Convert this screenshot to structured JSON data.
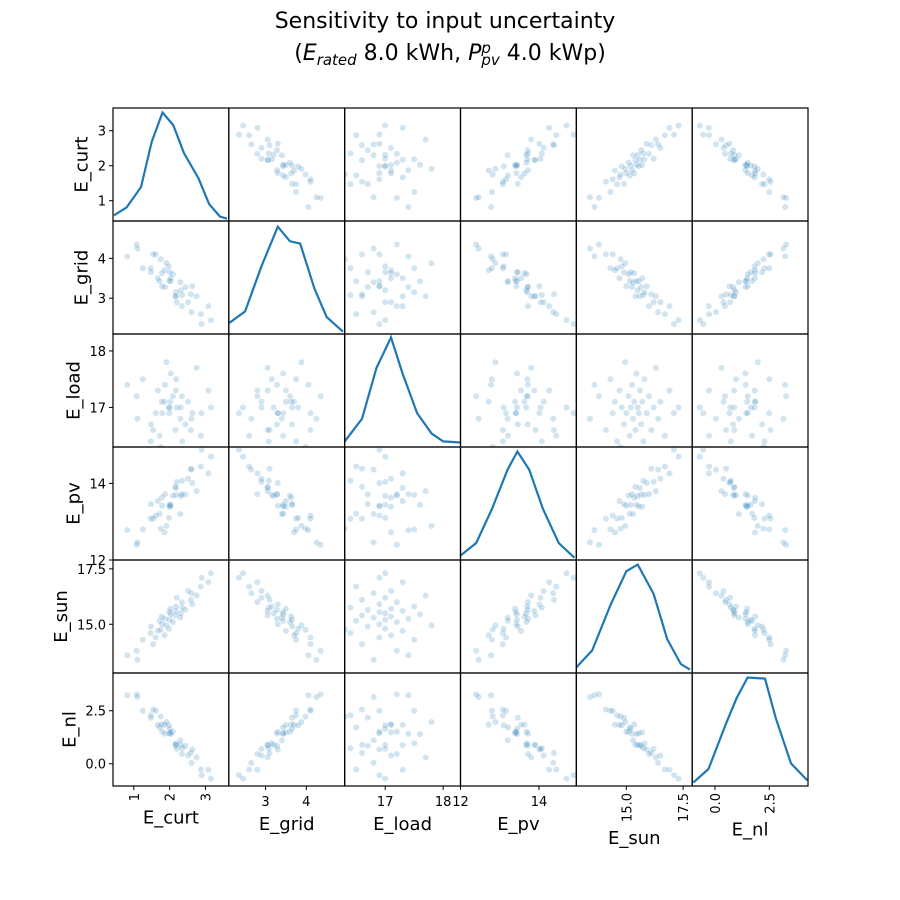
{
  "chart_data": {
    "type": "scatter_matrix",
    "title": "Sensitivity to input uncertainty",
    "subtitle": [
      {
        "text": "(",
        "pos": "base",
        "italic": false
      },
      {
        "text": "E",
        "pos": "base",
        "italic": true
      },
      {
        "text": "rated",
        "pos": "sub",
        "italic": true
      },
      {
        "text": " 8.0 kWh, ",
        "pos": "base",
        "italic": false
      },
      {
        "text": "P",
        "pos": "base",
        "italic": true
      },
      {
        "text": "p",
        "pos": "sup",
        "italic": true
      },
      {
        "text": "pv",
        "pos": "sub",
        "italic": true
      },
      {
        "text": " 4.0 kWp)",
        "pos": "base",
        "italic": false
      }
    ],
    "color": "#1f77b4",
    "point_alpha": 0.2,
    "kde_ylim": [
      0,
      1
    ],
    "variables": [
      {
        "name": "E_curt",
        "lim": [
          0.42,
          3.65
        ],
        "ticks": [
          1,
          2,
          3
        ],
        "xtick_rotation": 90,
        "values": [
          1.1,
          1.08,
          1.54,
          1.25,
          1.61,
          1.86,
          1.47,
          1.67,
          1.98,
          1.48,
          1.91,
          1.79,
          2.09,
          1.72,
          2.0,
          1.87,
          2.3,
          1.78,
          2.16,
          2.03,
          2.31,
          1.99,
          2.17,
          2.44,
          2.02,
          2.35,
          2.18,
          2.63,
          2.34,
          2.59,
          2.2,
          2.75,
          2.61,
          2.51,
          2.87,
          3.08,
          2.89,
          3.15,
          0.82,
          1.75
        ],
        "kde": {
          "x": [
            0.45,
            0.8,
            1.2,
            1.5,
            1.8,
            2.1,
            2.4,
            2.8,
            3.1,
            3.4,
            3.6
          ],
          "y": [
            0.05,
            0.12,
            0.3,
            0.7,
            0.96,
            0.85,
            0.6,
            0.38,
            0.15,
            0.04,
            0.02
          ]
        }
      },
      {
        "name": "E_grid",
        "lim": [
          2.1,
          4.94
        ],
        "ticks": [
          3,
          4
        ],
        "xtick_rotation": 0,
        "values": [
          4.25,
          4.35,
          4.1,
          3.75,
          4.1,
          3.7,
          3.75,
          3.5,
          3.8,
          3.65,
          3.88,
          3.3,
          3.6,
          3.43,
          3.65,
          3.28,
          3.4,
          3.63,
          3.05,
          3.43,
          3.2,
          3.43,
          3.05,
          3.28,
          3.5,
          3.08,
          3.15,
          3.3,
          2.8,
          3.1,
          2.9,
          3.05,
          2.65,
          2.9,
          2.6,
          2.8,
          2.35,
          2.45,
          4.05,
          3.98
        ],
        "kde": {
          "x": [
            2.12,
            2.5,
            2.9,
            3.3,
            3.6,
            3.85,
            4.2,
            4.5,
            4.9
          ],
          "y": [
            0.1,
            0.2,
            0.6,
            0.95,
            0.82,
            0.8,
            0.4,
            0.15,
            0.02
          ]
        }
      },
      {
        "name": "E_load",
        "lim": [
          16.3,
          18.3
        ],
        "ticks": [
          17,
          18
        ],
        "xtick_rotation": 0,
        "values": [
          16.8,
          17.2,
          16.6,
          17.5,
          16.9,
          17.1,
          16.4,
          17.3,
          17.0,
          16.7,
          17.8,
          16.9,
          17.2,
          16.5,
          17.0,
          17.4,
          16.8,
          17.1,
          16.6,
          17.6,
          17.0,
          16.9,
          17.3,
          16.7,
          17.1,
          16.4,
          17.5,
          16.9,
          17.2,
          16.6,
          17.0,
          17.7,
          16.8,
          17.1,
          16.5,
          17.3,
          16.9,
          17.0,
          17.4,
          16.3
        ],
        "kde": {
          "x": [
            16.3,
            16.6,
            16.85,
            17.1,
            17.3,
            17.55,
            17.8,
            18.0,
            18.3
          ],
          "y": [
            0.05,
            0.25,
            0.7,
            0.97,
            0.65,
            0.3,
            0.12,
            0.05,
            0.04
          ]
        }
      },
      {
        "name": "E_pv",
        "lim": [
          12,
          14.95
        ],
        "ticks": [
          12,
          14
        ],
        "xtick_rotation": 0,
        "values": [
          12.46,
          12.4,
          13.08,
          12.8,
          13.16,
          12.72,
          13.08,
          13.54,
          13.1,
          13.46,
          12.89,
          13.42,
          13.68,
          13.21,
          13.44,
          13.72,
          13.2,
          13.63,
          13.91,
          13.44,
          13.67,
          13.4,
          13.88,
          13.71,
          13.39,
          14.07,
          13.7,
          14.01,
          13.72,
          14.38,
          14.04,
          13.8,
          14.36,
          14.12,
          14.44,
          14.26,
          14.88,
          14.7,
          12.78,
          12.82
        ],
        "kde": {
          "x": [
            12.0,
            12.4,
            12.8,
            13.2,
            13.45,
            13.75,
            14.1,
            14.5,
            14.9
          ],
          "y": [
            0.04,
            0.15,
            0.45,
            0.8,
            0.96,
            0.8,
            0.45,
            0.15,
            0.02
          ]
        }
      },
      {
        "name": "E_sun",
        "lim": [
          12.8,
          17.9
        ],
        "ticks": [
          {
            "value": 15,
            "label": "15.0"
          },
          17.5
        ],
        "xtick_rotation": 90,
        "values": [
          13.4,
          13.8,
          14.1,
          14.3,
          14.4,
          14.5,
          14.6,
          14.7,
          14.8,
          14.9,
          14.95,
          15.0,
          15.1,
          15.15,
          15.2,
          15.25,
          15.3,
          15.35,
          15.4,
          15.45,
          15.5,
          15.55,
          15.6,
          15.65,
          15.7,
          15.75,
          15.8,
          15.9,
          16.0,
          16.1,
          16.2,
          16.3,
          16.4,
          16.5,
          16.7,
          16.9,
          17.1,
          17.3,
          13.6,
          14.75
        ],
        "kde": {
          "x": [
            12.8,
            13.5,
            14.3,
            15.0,
            15.5,
            16.2,
            16.8,
            17.4,
            17.8
          ],
          "y": [
            0.05,
            0.2,
            0.6,
            0.9,
            0.96,
            0.7,
            0.3,
            0.08,
            0.03
          ]
        }
      },
      {
        "name": "E_nl",
        "lim": [
          -1.05,
          4.28
        ],
        "ticks": [
          {
            "value": 0,
            "label": "0.0"
          },
          2.5
        ],
        "xtick_rotation": 90,
        "values": [
          3.15,
          3.27,
          2.56,
          2.5,
          2.49,
          1.84,
          2.28,
          1.83,
          1.82,
          2.17,
          1.97,
          1.51,
          1.51,
          1.71,
          1.65,
          1.41,
          1.1,
          1.85,
          0.89,
          1.4,
          0.89,
          1.44,
          0.88,
          0.84,
          1.48,
          0.73,
          0.97,
          0.67,
          0.46,
          0.51,
          0.7,
          0.3,
          0.04,
          0.39,
          -0.27,
          -0.28,
          -0.54,
          -0.7,
          3.23,
          2.23
        ],
        "kde": {
          "x": [
            -1.0,
            -0.3,
            0.5,
            1.0,
            1.5,
            2.3,
            2.8,
            3.5,
            4.25
          ],
          "y": [
            0.03,
            0.15,
            0.55,
            0.78,
            0.96,
            0.95,
            0.6,
            0.2,
            0.05
          ]
        }
      }
    ]
  }
}
